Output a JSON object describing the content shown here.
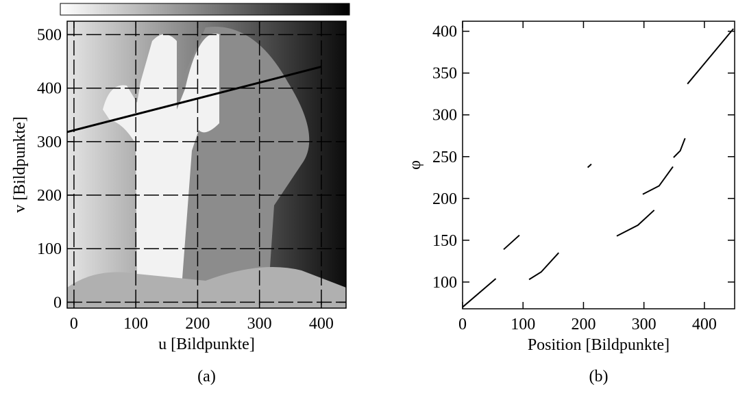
{
  "chart_data": [
    {
      "type": "image",
      "xlabel": "u [Bildpunkte]",
      "ylabel": "v [Bildpunkte]",
      "caption": "(a)",
      "xlim": [
        -11,
        440
      ],
      "ylim": [
        -11,
        525
      ],
      "xticks": [
        0,
        100,
        200,
        300,
        400
      ],
      "yticks": [
        0,
        100,
        200,
        300,
        400,
        500
      ],
      "grid": true,
      "profile_line": {
        "x": [
          -11,
          400
        ],
        "y": [
          318,
          440
        ],
        "color": "#000000"
      }
    },
    {
      "type": "line",
      "xlabel": "Position [Bildpunkte]",
      "ylabel": "φ",
      "caption": "(b)",
      "xlim": [
        0,
        450
      ],
      "ylim": [
        68,
        412
      ],
      "xticks": [
        0,
        100,
        200,
        300,
        400
      ],
      "yticks": [
        100,
        150,
        200,
        250,
        300,
        350,
        400
      ],
      "grid": false,
      "color": "#000000",
      "segments": [
        {
          "x": [
            0,
            55
          ],
          "y": [
            70,
            104
          ]
        },
        {
          "x": [
            68,
            94
          ],
          "y": [
            139,
            156
          ]
        },
        {
          "x": [
            110,
            130,
            159
          ],
          "y": [
            103,
            112,
            135
          ]
        },
        {
          "x": [
            207,
            213
          ],
          "y": [
            237,
            241
          ]
        },
        {
          "x": [
            255,
            290,
            317
          ],
          "y": [
            155,
            168,
            186
          ]
        },
        {
          "x": [
            298,
            325,
            348
          ],
          "y": [
            205,
            215,
            238
          ]
        },
        {
          "x": [
            349,
            360,
            368
          ],
          "y": [
            249,
            257,
            272
          ]
        },
        {
          "x": [
            372,
            448
          ],
          "y": [
            337,
            403
          ]
        }
      ]
    }
  ]
}
